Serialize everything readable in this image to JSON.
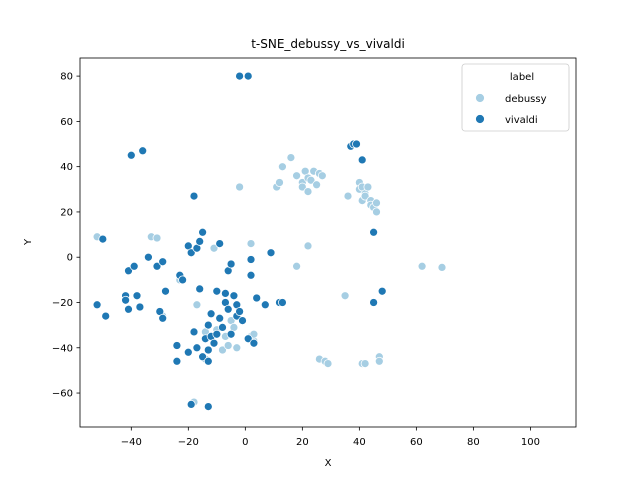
{
  "chart_data": {
    "type": "scatter",
    "title": "t-SNE_debussy_vs_vivaldi",
    "xlabel": "X",
    "ylabel": "Y",
    "xlim": [
      -58,
      116
    ],
    "ylim": [
      -75,
      88
    ],
    "xticks": [
      -40,
      -20,
      0,
      20,
      40,
      60,
      80,
      100
    ],
    "yticks": [
      -60,
      -40,
      -20,
      0,
      20,
      40,
      60,
      80
    ],
    "grid": false,
    "legend": {
      "title": "label",
      "position": "top-right"
    },
    "series": [
      {
        "name": "debussy",
        "color": "#a6cee3",
        "points": [
          [
            -52,
            9
          ],
          [
            -33,
            9
          ],
          [
            -31,
            8.5
          ],
          [
            -29,
            -26
          ],
          [
            -23,
            -10
          ],
          [
            -18,
            -64
          ],
          [
            -17,
            -21
          ],
          [
            -14,
            -33
          ],
          [
            -14,
            -45
          ],
          [
            -11,
            4
          ],
          [
            -10,
            -32
          ],
          [
            -8,
            -41
          ],
          [
            -7,
            -35
          ],
          [
            -6,
            -39
          ],
          [
            -5,
            -28
          ],
          [
            -4,
            -31
          ],
          [
            -3,
            -40
          ],
          [
            -2,
            31
          ],
          [
            2,
            6
          ],
          [
            2,
            -35
          ],
          [
            3,
            -37
          ],
          [
            3,
            -34
          ],
          [
            11,
            31
          ],
          [
            12,
            33
          ],
          [
            13,
            40
          ],
          [
            16,
            44
          ],
          [
            18,
            36
          ],
          [
            20,
            33
          ],
          [
            20,
            31
          ],
          [
            21,
            38
          ],
          [
            22,
            35
          ],
          [
            22,
            29
          ],
          [
            22,
            5
          ],
          [
            23,
            34
          ],
          [
            24,
            38
          ],
          [
            25,
            32
          ],
          [
            26,
            37
          ],
          [
            27,
            36
          ],
          [
            18,
            -4
          ],
          [
            26,
            -45
          ],
          [
            28,
            -46
          ],
          [
            29,
            -47
          ],
          [
            35,
            -17
          ],
          [
            36,
            27
          ],
          [
            40,
            33
          ],
          [
            40,
            30
          ],
          [
            41,
            31
          ],
          [
            41,
            25
          ],
          [
            42,
            28
          ],
          [
            42,
            27
          ],
          [
            43,
            31
          ],
          [
            44,
            25
          ],
          [
            44,
            23
          ],
          [
            45,
            22
          ],
          [
            46,
            24
          ],
          [
            46,
            20
          ],
          [
            41,
            -47
          ],
          [
            42,
            -47
          ],
          [
            47,
            -44
          ],
          [
            47,
            -46
          ],
          [
            62,
            -4
          ],
          [
            69,
            -4.5
          ]
        ]
      },
      {
        "name": "vivaldi",
        "color": "#1f78b4",
        "points": [
          [
            -52,
            -21
          ],
          [
            -50,
            8
          ],
          [
            -49,
            -26
          ],
          [
            -42,
            -17
          ],
          [
            -42,
            -19
          ],
          [
            -41,
            -23
          ],
          [
            -41,
            -6
          ],
          [
            -40,
            45
          ],
          [
            -39,
            -4
          ],
          [
            -38,
            -17
          ],
          [
            -37,
            -22
          ],
          [
            -36,
            47
          ],
          [
            -34,
            0
          ],
          [
            -31,
            -4
          ],
          [
            -30,
            -24
          ],
          [
            -29,
            -27
          ],
          [
            -29,
            -2
          ],
          [
            -28,
            -15
          ],
          [
            -24,
            -46
          ],
          [
            -24,
            -39
          ],
          [
            -23,
            -8
          ],
          [
            -22,
            -10
          ],
          [
            -20,
            5
          ],
          [
            -20,
            -42
          ],
          [
            -19,
            -65
          ],
          [
            -19,
            2
          ],
          [
            -18,
            27
          ],
          [
            -18,
            -33
          ],
          [
            -17,
            4
          ],
          [
            -17,
            -40
          ],
          [
            -16,
            -14
          ],
          [
            -16,
            7
          ],
          [
            -15,
            -44
          ],
          [
            -15,
            11
          ],
          [
            -14,
            -36
          ],
          [
            -13,
            -30
          ],
          [
            -13,
            -41
          ],
          [
            -13,
            -46
          ],
          [
            -13,
            -66
          ],
          [
            -12,
            -25
          ],
          [
            -12,
            -35
          ],
          [
            -11,
            -38
          ],
          [
            -10,
            -15
          ],
          [
            -10,
            -34
          ],
          [
            -9,
            -27
          ],
          [
            -9,
            6
          ],
          [
            -8,
            -31
          ],
          [
            -7,
            -16
          ],
          [
            -7,
            -20
          ],
          [
            -6,
            -23
          ],
          [
            -6,
            -6
          ],
          [
            -5,
            -3
          ],
          [
            -5,
            -34
          ],
          [
            -4,
            -17
          ],
          [
            -3,
            -21
          ],
          [
            -3,
            -26
          ],
          [
            -2,
            -24
          ],
          [
            -2,
            80
          ],
          [
            -1,
            -28
          ],
          [
            1,
            80
          ],
          [
            1,
            -36
          ],
          [
            2,
            -1
          ],
          [
            2,
            -8
          ],
          [
            3,
            -38
          ],
          [
            4,
            -18
          ],
          [
            7,
            -21
          ],
          [
            9,
            2
          ],
          [
            12,
            -20
          ],
          [
            13,
            -20
          ],
          [
            37,
            49
          ],
          [
            38,
            50
          ],
          [
            39,
            50
          ],
          [
            41,
            43
          ],
          [
            45,
            11
          ],
          [
            45,
            -20
          ],
          [
            48,
            -15
          ]
        ]
      }
    ]
  }
}
